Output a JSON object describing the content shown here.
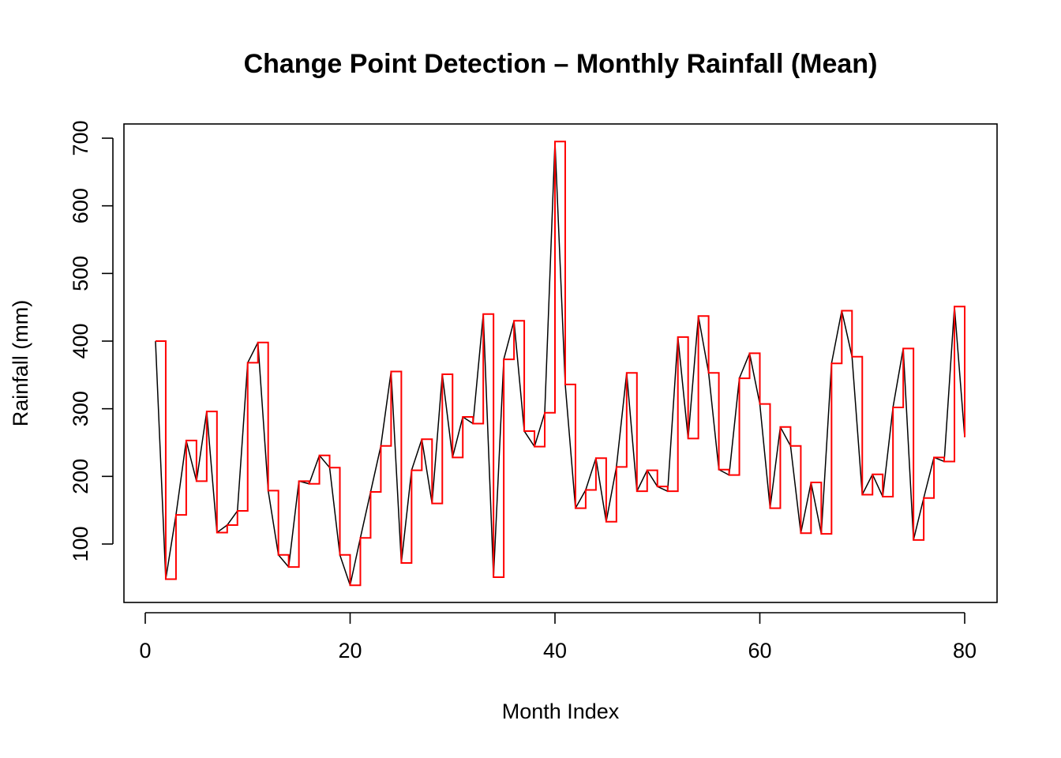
{
  "chart_data": {
    "type": "line",
    "title": "Change Point Detection – Monthly Rainfall (Mean)",
    "xlabel": "Month Index",
    "ylabel": "Rainfall (mm)",
    "xlim": [
      0,
      80
    ],
    "ylim": [
      35,
      720
    ],
    "xticks": [
      0,
      20,
      40,
      60,
      80
    ],
    "yticks": [
      100,
      200,
      300,
      400,
      500,
      600,
      700
    ],
    "grid": false,
    "series": [
      {
        "color": "#000000",
        "style": "line",
        "x": [
          1,
          2,
          3,
          4,
          5,
          6,
          7,
          8,
          9,
          10,
          11,
          12,
          13,
          14,
          15,
          16,
          17,
          18,
          19,
          20,
          21,
          22,
          23,
          24,
          25,
          26,
          27,
          28,
          29,
          30,
          31,
          32,
          33,
          34,
          35,
          36,
          37,
          38,
          39,
          40,
          41,
          42,
          43,
          44,
          45,
          46,
          47,
          48,
          49,
          50,
          51,
          52,
          53,
          54,
          55,
          56,
          57,
          58,
          59,
          60,
          61,
          62,
          63,
          64,
          65,
          66,
          67,
          68,
          69,
          70,
          71,
          72,
          73,
          74,
          75,
          76,
          77,
          78,
          79,
          80
        ],
        "values": [
          400,
          48,
          143,
          253,
          193,
          296,
          117,
          128,
          149,
          368,
          398,
          179,
          84,
          66,
          193,
          189,
          231,
          213,
          84,
          39,
          109,
          177,
          245,
          355,
          72,
          209,
          255,
          160,
          351,
          228,
          288,
          278,
          440,
          51,
          373,
          430,
          267,
          244,
          294,
          695,
          336,
          153,
          180,
          227,
          133,
          214,
          353,
          178,
          209,
          185,
          178,
          406,
          256,
          437,
          353,
          210,
          202,
          345,
          382,
          307,
          153,
          273,
          245,
          116,
          191,
          115,
          367,
          445,
          377,
          173,
          203,
          170,
          302,
          389,
          106,
          168,
          228,
          222,
          451,
          258
        ]
      },
      {
        "color": "#ff0000",
        "style": "step"
      }
    ]
  }
}
